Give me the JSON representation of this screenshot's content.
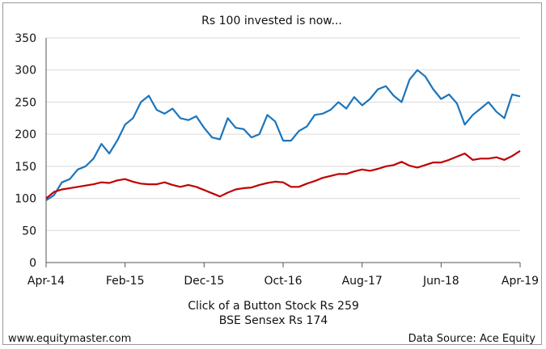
{
  "chart_data": {
    "type": "line",
    "title": "Rs 100 invested is now...",
    "xlabel": "",
    "ylabel": "",
    "ylim": [
      0,
      350
    ],
    "yticks": [
      0,
      50,
      100,
      150,
      200,
      250,
      300,
      350
    ],
    "x_tick_labels": [
      "Apr-14",
      "Feb-15",
      "Dec-15",
      "Oct-16",
      "Aug-17",
      "Jun-18",
      "Apr-19"
    ],
    "grid": true,
    "legend_position": "bottom-center",
    "series": [
      {
        "name": "Click of a Button Stock Rs 259",
        "color": "#1b75bc",
        "x": [
          "Apr-14",
          "May-14",
          "Jun-14",
          "Jul-14",
          "Aug-14",
          "Sep-14",
          "Oct-14",
          "Nov-14",
          "Dec-14",
          "Jan-15",
          "Feb-15",
          "Mar-15",
          "Apr-15",
          "May-15",
          "Jun-15",
          "Jul-15",
          "Aug-15",
          "Sep-15",
          "Oct-15",
          "Nov-15",
          "Dec-15",
          "Jan-16",
          "Feb-16",
          "Mar-16",
          "Apr-16",
          "May-16",
          "Jun-16",
          "Jul-16",
          "Aug-16",
          "Sep-16",
          "Oct-16",
          "Nov-16",
          "Dec-16",
          "Jan-17",
          "Feb-17",
          "Mar-17",
          "Apr-17",
          "May-17",
          "Jun-17",
          "Jul-17",
          "Aug-17",
          "Sep-17",
          "Oct-17",
          "Nov-17",
          "Dec-17",
          "Jan-18",
          "Feb-18",
          "Mar-18",
          "Apr-18",
          "May-18",
          "Jun-18",
          "Jul-18",
          "Aug-18",
          "Sep-18",
          "Oct-18",
          "Nov-18",
          "Dec-18",
          "Jan-19",
          "Feb-19",
          "Mar-19",
          "Apr-19"
        ],
        "values": [
          97,
          105,
          125,
          130,
          145,
          150,
          162,
          185,
          170,
          190,
          215,
          225,
          250,
          260,
          238,
          232,
          240,
          225,
          222,
          228,
          210,
          195,
          192,
          225,
          210,
          208,
          195,
          200,
          230,
          220,
          190,
          190,
          205,
          212,
          230,
          232,
          238,
          250,
          240,
          258,
          245,
          255,
          270,
          275,
          260,
          250,
          285,
          300,
          290,
          270,
          255,
          262,
          248,
          215,
          230,
          240,
          250,
          235,
          225,
          262,
          259
        ]
      },
      {
        "name": "BSE Sensex Rs 174",
        "color": "#c00000",
        "x": [
          "Apr-14",
          "May-14",
          "Jun-14",
          "Jul-14",
          "Aug-14",
          "Sep-14",
          "Oct-14",
          "Nov-14",
          "Dec-14",
          "Jan-15",
          "Feb-15",
          "Mar-15",
          "Apr-15",
          "May-15",
          "Jun-15",
          "Jul-15",
          "Aug-15",
          "Sep-15",
          "Oct-15",
          "Nov-15",
          "Dec-15",
          "Jan-16",
          "Feb-16",
          "Mar-16",
          "Apr-16",
          "May-16",
          "Jun-16",
          "Jul-16",
          "Aug-16",
          "Sep-16",
          "Oct-16",
          "Nov-16",
          "Dec-16",
          "Jan-17",
          "Feb-17",
          "Mar-17",
          "Apr-17",
          "May-17",
          "Jun-17",
          "Jul-17",
          "Aug-17",
          "Sep-17",
          "Oct-17",
          "Nov-17",
          "Dec-17",
          "Jan-18",
          "Feb-18",
          "Mar-18",
          "Apr-18",
          "May-18",
          "Jun-18",
          "Jul-18",
          "Aug-18",
          "Sep-18",
          "Oct-18",
          "Nov-18",
          "Dec-18",
          "Jan-19",
          "Feb-19",
          "Mar-19",
          "Apr-19"
        ],
        "values": [
          100,
          110,
          114,
          116,
          118,
          120,
          122,
          125,
          124,
          128,
          130,
          126,
          123,
          122,
          122,
          125,
          121,
          118,
          121,
          118,
          113,
          108,
          103,
          109,
          114,
          116,
          117,
          121,
          124,
          126,
          125,
          118,
          118,
          123,
          127,
          132,
          135,
          138,
          138,
          142,
          145,
          143,
          146,
          150,
          152,
          157,
          151,
          148,
          152,
          156,
          156,
          160,
          165,
          170,
          160,
          162,
          162,
          164,
          160,
          166,
          174
        ]
      }
    ]
  },
  "footer": {
    "source_left": "www.equitymaster.com",
    "source_right": "Data Source: Ace Equity"
  }
}
